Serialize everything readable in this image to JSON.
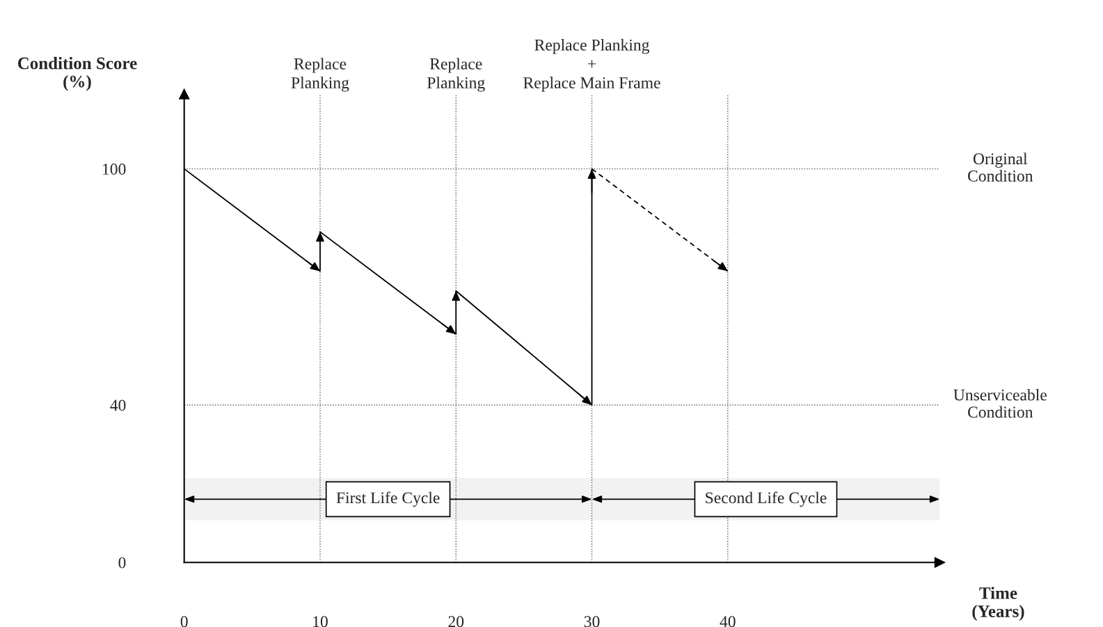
{
  "chart_data": {
    "type": "line",
    "xlabel": "Time\n(Years)",
    "ylabel": "Condition Score\n(%)",
    "xlim": [
      0,
      55.6
    ],
    "ylim": [
      0,
      119
    ],
    "xticks": [
      0,
      10,
      20,
      30,
      40
    ],
    "yticks": [
      0,
      40,
      100
    ],
    "legend": false,
    "marker": "none",
    "series": [
      {
        "color": "#000000",
        "line_style": "solid",
        "x": [
          0,
          10,
          10,
          20,
          20,
          30,
          30
        ],
        "values": [
          100,
          74,
          84,
          58,
          69,
          40,
          100
        ]
      },
      {
        "color": "#000000",
        "line_style": "dashed",
        "x": [
          30,
          40
        ],
        "values": [
          100,
          74
        ]
      }
    ],
    "ref_lines": [
      {
        "axis": "y",
        "value": 100,
        "label": "Original\nCondition",
        "line_style": "dotted"
      },
      {
        "axis": "y",
        "value": 40,
        "label": "Unserviceable\nCondition",
        "line_style": "dotted"
      },
      {
        "axis": "x",
        "value": 10,
        "label": "Replace\nPlanking",
        "line_style": "dotted"
      },
      {
        "axis": "x",
        "value": 20,
        "label": "Replace\nPlanking",
        "line_style": "dotted"
      },
      {
        "axis": "x",
        "value": 30,
        "label": "Replace Planking\n+\nReplace Main Frame",
        "line_style": "dotted"
      },
      {
        "axis": "x",
        "value": 40,
        "label": null,
        "line_style": "dotted"
      }
    ],
    "bands": [
      {
        "axis": "x",
        "from": 0,
        "to": 30,
        "label": "First Life Cycle"
      },
      {
        "axis": "x",
        "from": 30,
        "to": 55.6,
        "label": "Second Life Cycle"
      }
    ]
  }
}
